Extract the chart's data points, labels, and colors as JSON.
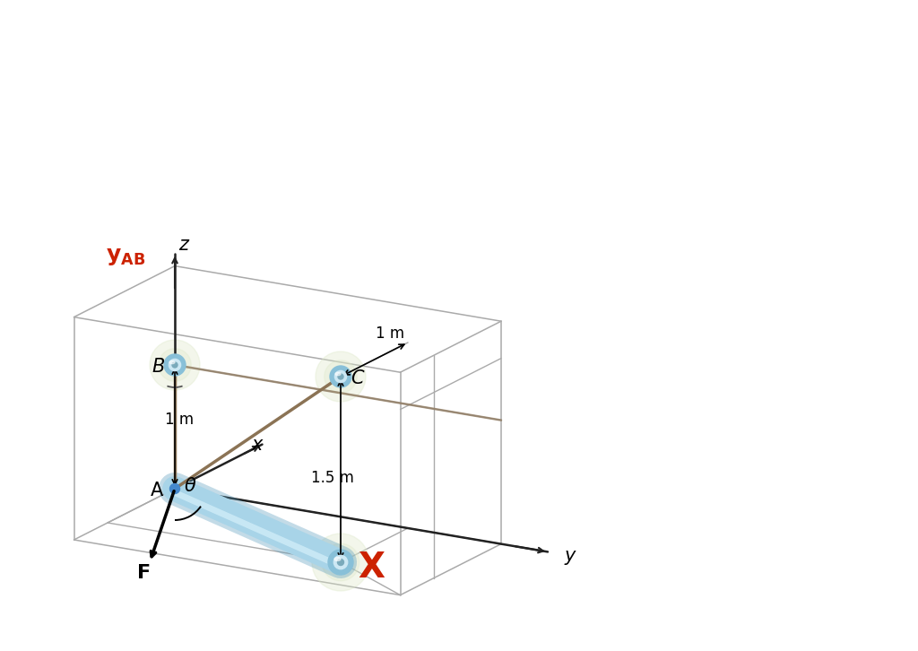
{
  "background_color": "#ffffff",
  "figsize": [
    10.24,
    7.26
  ],
  "dpi": 100,
  "cable_color": "#8B7355",
  "rod_color_main": "#a8d4e8",
  "rod_color_dark": "#7ab0cc",
  "rod_color_highlight": "#d0edf8",
  "axis_color": "#222222",
  "grid_color": "#aaaaaa",
  "glow_color": "#dde8c8",
  "node_color": "#7ab8d8",
  "point_A_color": "#4488cc",
  "label_A": "A",
  "label_B": "B",
  "label_C": "C",
  "label_x": "x",
  "label_y": "y",
  "label_z": "z",
  "label_X": "X",
  "label_F": "F",
  "label_theta": "θ",
  "label_1m_left": "1 m",
  "label_1m_right": "1 m",
  "label_15m": "1.5 m"
}
